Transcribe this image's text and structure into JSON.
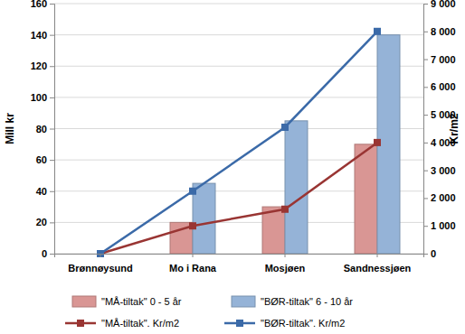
{
  "chart_data": {
    "type": "bar",
    "categories": [
      "Brønnøysund",
      "Mo i Rana",
      "Mosjøen",
      "Sandnessjøen"
    ],
    "y_label": "Mill kr",
    "y2_label": "Kr/m2",
    "ylim": [
      0,
      160
    ],
    "yticks": [
      0,
      20,
      40,
      60,
      80,
      100,
      120,
      140,
      160
    ],
    "y2lim": [
      0,
      9000
    ],
    "y2ticks": [
      0,
      {
        "value": 1000,
        "label": "1 000"
      },
      {
        "value": 2000,
        "label": "2 000"
      },
      {
        "value": 3000,
        "label": "3 000"
      },
      {
        "value": 4000,
        "label": "4 000"
      },
      {
        "value": 5000,
        "label": "5 000"
      },
      {
        "value": 6000,
        "label": "6 000"
      },
      {
        "value": 7000,
        "label": "7 000"
      },
      {
        "value": 8000,
        "label": "8 000"
      },
      {
        "value": 9000,
        "label": "9 000"
      }
    ],
    "grid": true,
    "legend": "bottom",
    "series": [
      {
        "name": "\"MÅ-tiltak\" 0 - 5 år",
        "type": "bar",
        "color": "#d99694",
        "values": [
          0,
          20,
          30,
          70
        ]
      },
      {
        "name": "\"BØR-tiltak\" 6 - 10 år",
        "type": "bar",
        "color": "#95b3d7",
        "values": [
          0,
          45,
          85,
          140
        ]
      },
      {
        "name": "\"MÅ-tiltak\". Kr/m2",
        "type": "line",
        "axis": "y2",
        "color": "#993533",
        "marker": "square",
        "line_style": "solid",
        "values": [
          0,
          1000,
          1600,
          4000
        ]
      },
      {
        "name": "\"BØR-tiltak\". Kr/m2",
        "type": "line",
        "axis": "y2",
        "color": "#3b6aa8",
        "marker": "square",
        "line_style": "solid",
        "values": [
          0,
          2250,
          4550,
          8000
        ]
      }
    ]
  }
}
